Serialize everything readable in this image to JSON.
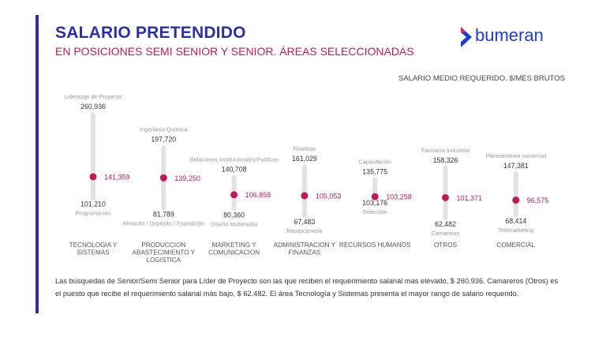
{
  "header": {
    "title": "SALARIO PRETENDIDO",
    "subtitle": "EN POSICIONES SEMI SENIOR Y SENIOR. ÁREAS SELECCIONADAS",
    "unit_label": "SALARIO MEDIO REQUERIDO. $/MES BRUTOS",
    "logo_text": "bumeran"
  },
  "colors": {
    "title": "#2b2fa8",
    "subtitle": "#c2185b",
    "marker": "#c2185b",
    "bar": "#e2e2e2",
    "logo": "#1f3ad8"
  },
  "chart_data": {
    "type": "range",
    "ylim": [
      55000,
      270000
    ],
    "categories": [
      {
        "name": [
          "TECNOLOGIA Y",
          "SISTEMAS"
        ],
        "max": 260936,
        "max_label": "260,936",
        "max_role": "Liderazgo de Proyecto",
        "min": 101210,
        "min_label": "101,210",
        "min_role": "Programación",
        "mean": 141359,
        "mean_label": "141,359"
      },
      {
        "name": [
          "PRODUCCION",
          "ABASTECIMIENTO Y",
          "LOGISTICA"
        ],
        "max": 197720,
        "max_label": "197,720",
        "max_role": "Ingeniería Química",
        "min": 81789,
        "min_label": "81,789",
        "min_role": "Almacén / Depósito / Expedición",
        "mean": 139250,
        "mean_label": "139,250"
      },
      {
        "name": [
          "MARKETING Y",
          "COMUNICACION"
        ],
        "max": 140708,
        "max_label": "140,708",
        "max_role": "Relaciones Institucionales/Publicas",
        "min": 80360,
        "min_label": "80,360",
        "min_role": "Diseño Multimedia",
        "mean": 106858,
        "mean_label": "106,858"
      },
      {
        "name": [
          "ADMINISTRACION Y",
          "FINANZAS"
        ],
        "max": 161029,
        "max_label": "161,029",
        "max_role": "Finanzas",
        "min": 67483,
        "min_label": "67,483",
        "min_role": "Recepcionista",
        "mean": 105053,
        "mean_label": "105,053"
      },
      {
        "name": [
          "RECURSOS HUMANOS"
        ],
        "max": 135775,
        "max_label": "135,775",
        "max_role": "Capacitación",
        "min": 103176,
        "min_label": "103,176",
        "min_role": "Selección",
        "mean": 103258,
        "mean_label": "103,258"
      },
      {
        "name": [
          "OTROS"
        ],
        "max": 158326,
        "max_label": "158,326",
        "max_role": "Farmacia Industrial",
        "min": 62482,
        "min_label": "62,482",
        "min_role": "Camareros",
        "mean": 101371,
        "mean_label": "101,371"
      },
      {
        "name": [
          "COMERCIAL"
        ],
        "max": 147381,
        "max_label": "147,381",
        "max_role": "Planeamiento comercial",
        "min": 68414,
        "min_label": "68,414",
        "min_role": "Telemarketing",
        "mean": 96575,
        "mean_label": "96,575"
      }
    ]
  },
  "footnote": "Las búsquedas de Senior/Semi Senior para Líder de Proyecto son las que reciben el requerimiento salarial mas elevado, $ 260.936. Camareros (Otros) es el puesto que recibe el requerimiento salarial más bajo, $ 62.482.  El área Tecnología y Sistemas presenta el mayor rango de salario requerido."
}
